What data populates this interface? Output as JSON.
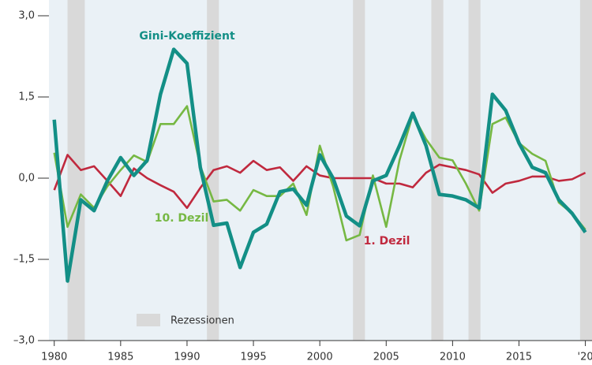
{
  "chart_data": {
    "type": "line",
    "x": [
      1980,
      1981,
      1982,
      1983,
      1984,
      1985,
      1986,
      1987,
      1988,
      1989,
      1990,
      1991,
      1992,
      1993,
      1994,
      1995,
      1996,
      1997,
      1998,
      1999,
      2000,
      2001,
      2002,
      2003,
      2004,
      2005,
      2006,
      2007,
      2008,
      2009,
      2010,
      2011,
      2012,
      2013,
      2014,
      2015,
      2016,
      2017,
      2018,
      2019,
      2020
    ],
    "series": [
      {
        "name": "Gini-Koeffizient",
        "color": "#138f86",
        "values": [
          1.08,
          -1.9,
          -0.4,
          -0.6,
          -0.05,
          0.38,
          0.05,
          0.33,
          1.55,
          2.38,
          2.12,
          0.2,
          -0.87,
          -0.83,
          -1.65,
          -1.0,
          -0.85,
          -0.25,
          -0.2,
          -0.5,
          0.43,
          0.0,
          -0.7,
          -0.88,
          -0.05,
          0.05,
          0.6,
          1.2,
          0.6,
          -0.3,
          -0.33,
          -0.4,
          -0.55,
          1.55,
          1.25,
          0.65,
          0.2,
          0.1,
          -0.4,
          -0.65,
          -1.0
        ]
      },
      {
        "name": "10. Dezil",
        "color": "#76b843",
        "values": [
          0.47,
          -0.9,
          -0.3,
          -0.55,
          -0.15,
          0.15,
          0.42,
          0.3,
          1.0,
          1.0,
          1.33,
          0.22,
          -0.43,
          -0.4,
          -0.6,
          -0.22,
          -0.33,
          -0.33,
          -0.1,
          -0.68,
          0.6,
          -0.15,
          -1.15,
          -1.05,
          0.05,
          -0.9,
          0.33,
          1.17,
          0.72,
          0.38,
          0.33,
          -0.1,
          -0.6,
          1.0,
          1.12,
          0.65,
          0.45,
          0.32,
          -0.45,
          -0.65,
          -0.95
        ]
      },
      {
        "name": "1. Dezil",
        "color": "#c0293e",
        "values": [
          -0.22,
          0.43,
          0.15,
          0.22,
          -0.05,
          -0.33,
          0.18,
          0.0,
          -0.13,
          -0.25,
          -0.55,
          -0.18,
          0.15,
          0.22,
          0.1,
          0.32,
          0.15,
          0.2,
          -0.05,
          0.22,
          0.05,
          0.0,
          0.0,
          0.0,
          0.0,
          -0.1,
          -0.1,
          -0.17,
          0.1,
          0.25,
          0.2,
          0.15,
          0.07,
          -0.27,
          -0.1,
          -0.05,
          0.03,
          0.03,
          -0.05,
          -0.02,
          0.1
        ]
      }
    ],
    "recessions": [
      [
        1981.0,
        1982.3
      ],
      [
        1991.5,
        1992.4
      ],
      [
        2002.5,
        2003.4
      ],
      [
        2008.4,
        2009.3
      ],
      [
        2011.2,
        2012.1
      ],
      [
        2019.6,
        2020.5
      ]
    ],
    "recession_label": "Rezessionen",
    "recession_color": "#d9d9d9",
    "xlim": [
      1979.6,
      2020.5
    ],
    "ylim": [
      -3,
      3
    ],
    "xticks": [
      1980,
      1985,
      1990,
      1995,
      2000,
      2005,
      2010,
      2015,
      {
        "value": 2020,
        "label": "'20"
      }
    ],
    "yticks": [
      {
        "value": -3,
        "label": "–3,0"
      },
      {
        "value": -1.5,
        "label": "–1,5"
      },
      {
        "value": 0,
        "label": "0,0"
      },
      {
        "value": 1.5,
        "label": "1,5"
      },
      {
        "value": 3,
        "label": "3,0"
      }
    ]
  }
}
